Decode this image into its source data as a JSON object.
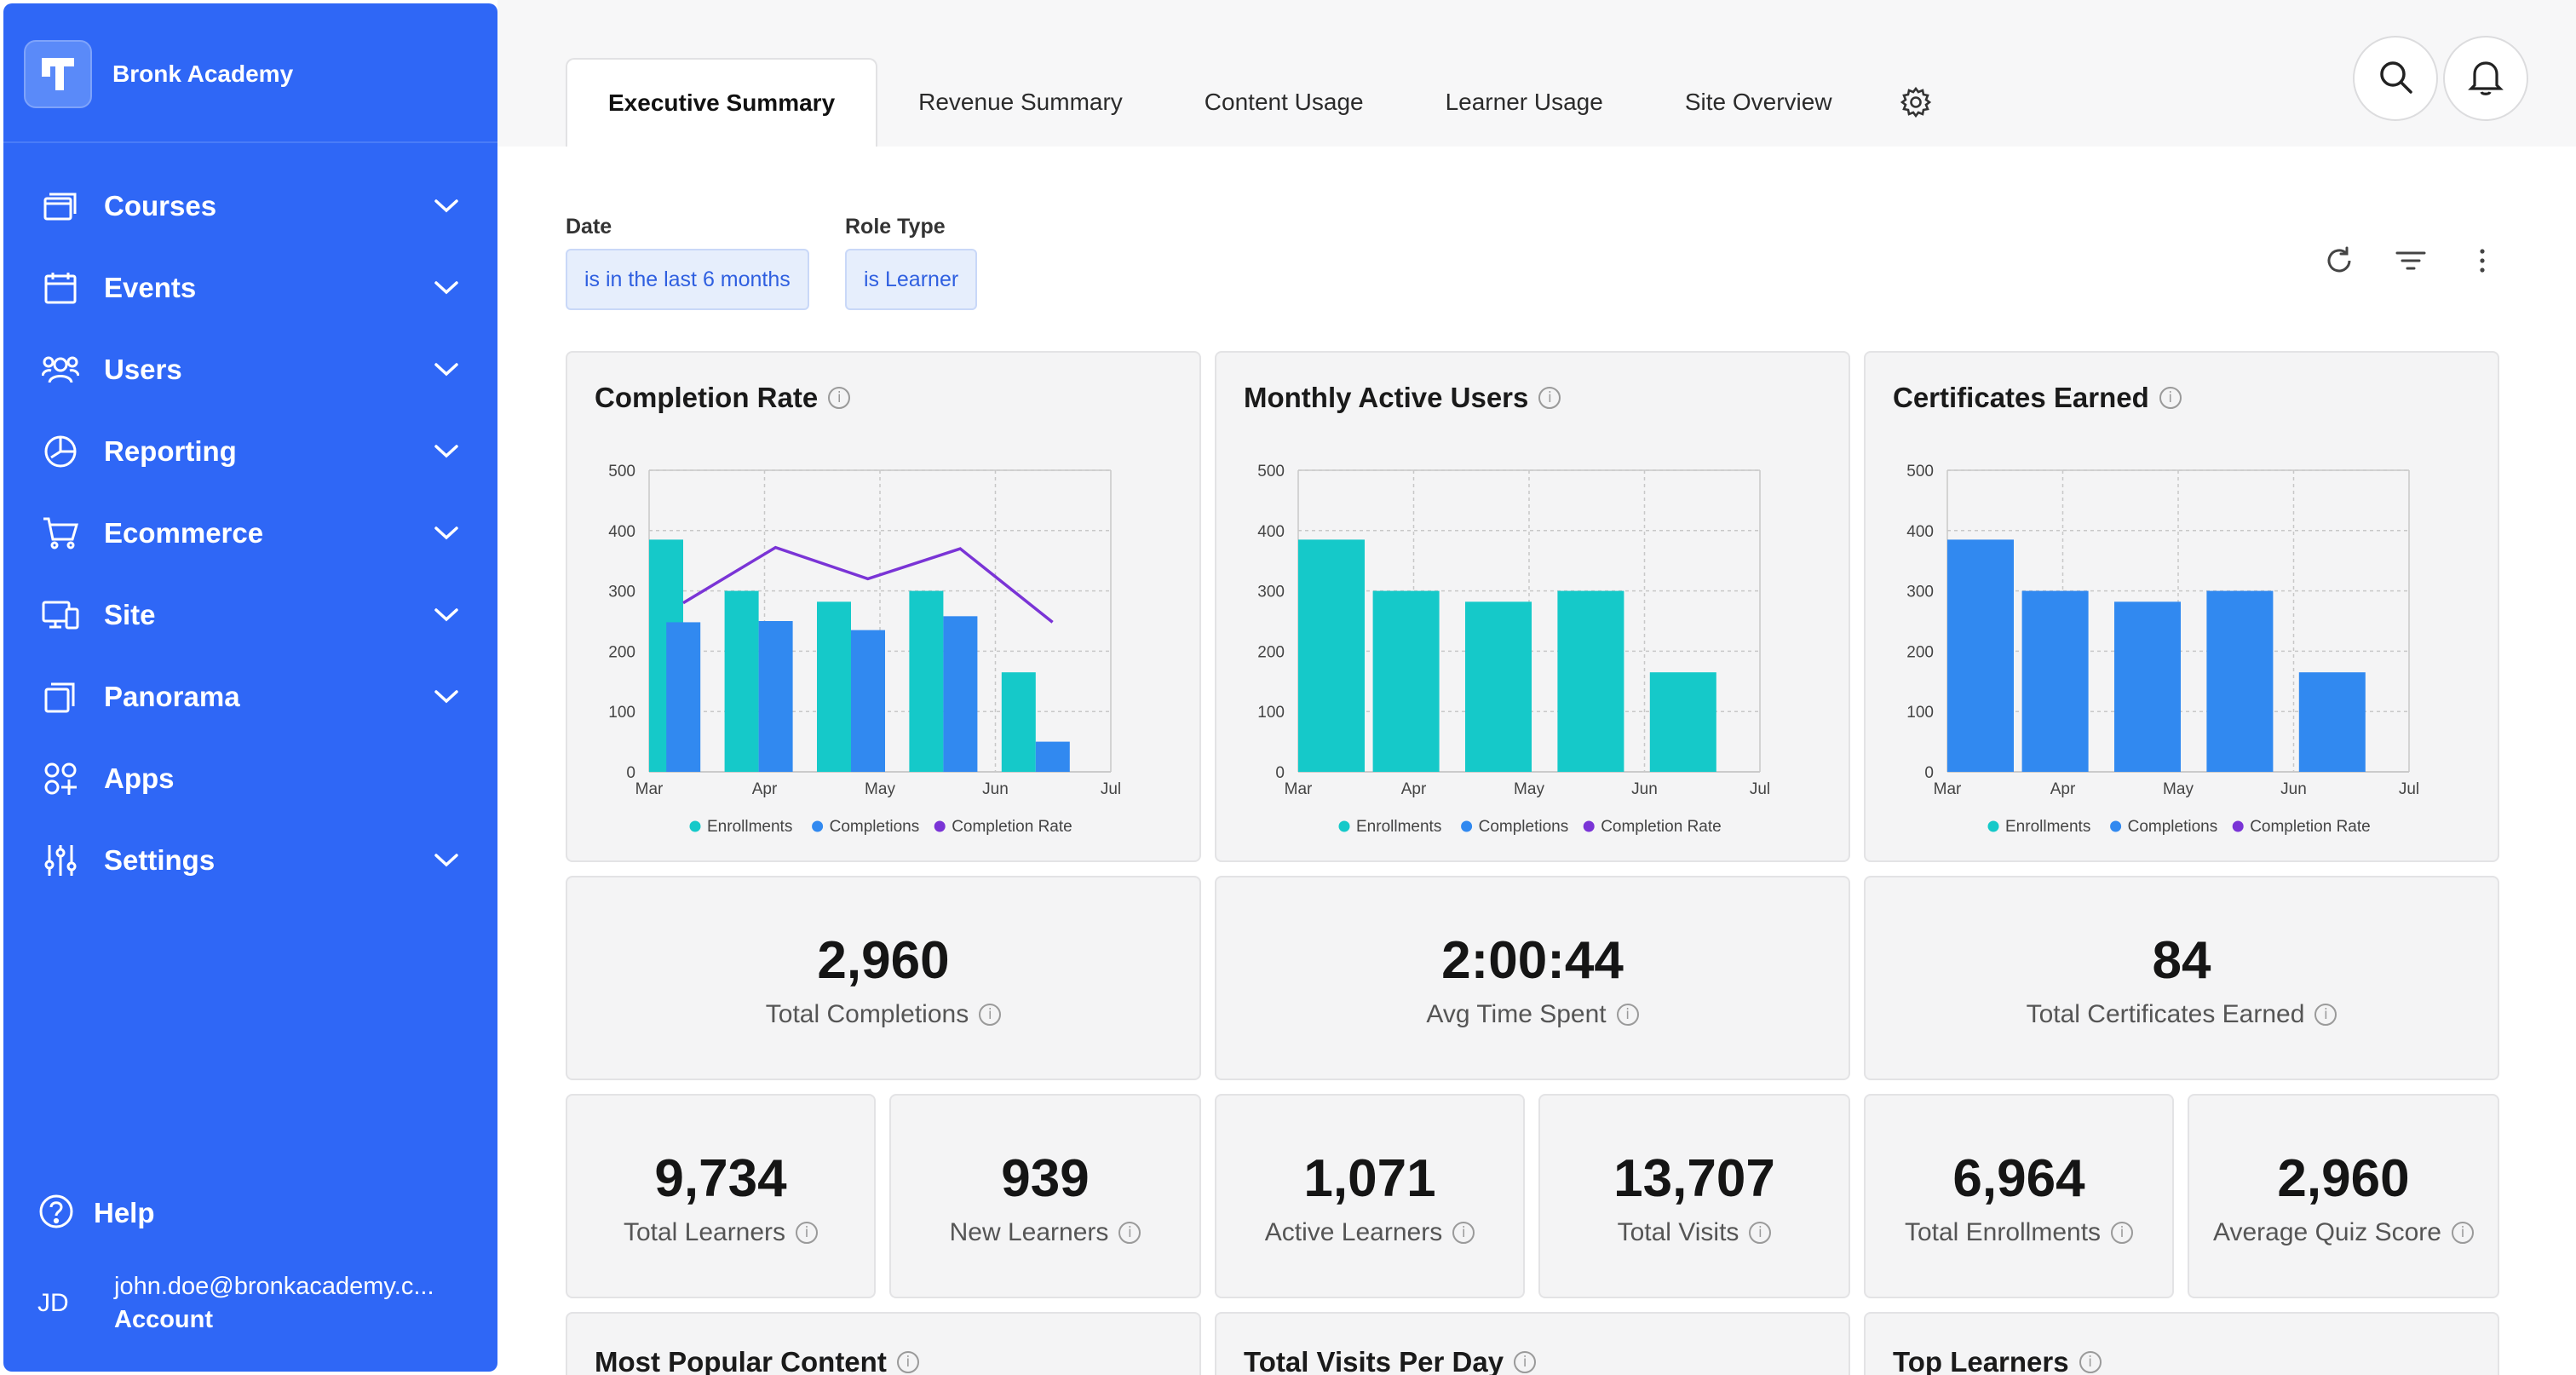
{
  "brand": {
    "name": "Bronk Academy",
    "logo_icon": "academy-logo-icon"
  },
  "nav": [
    {
      "key": "courses",
      "label": "Courses",
      "icon": "courses-icon",
      "has_children": true
    },
    {
      "key": "events",
      "label": "Events",
      "icon": "calendar-icon",
      "has_children": true
    },
    {
      "key": "users",
      "label": "Users",
      "icon": "users-icon",
      "has_children": true
    },
    {
      "key": "reporting",
      "label": "Reporting",
      "icon": "pie-chart-icon",
      "has_children": true
    },
    {
      "key": "ecommerce",
      "label": "Ecommerce",
      "icon": "cart-icon",
      "has_children": true
    },
    {
      "key": "site",
      "label": "Site",
      "icon": "devices-icon",
      "has_children": true
    },
    {
      "key": "panorama",
      "label": "Panorama",
      "icon": "stack-icon",
      "has_children": true
    },
    {
      "key": "apps",
      "label": "Apps",
      "icon": "apps-icon",
      "has_children": false
    },
    {
      "key": "settings",
      "label": "Settings",
      "icon": "sliders-icon",
      "has_children": true
    }
  ],
  "help": {
    "label": "Help"
  },
  "account": {
    "initials": "JD",
    "email": "john.doe@bronkacademy.c...",
    "label": "Account"
  },
  "tabs": [
    {
      "label": "Executive Summary",
      "active": true
    },
    {
      "label": "Revenue Summary",
      "active": false
    },
    {
      "label": "Content Usage",
      "active": false
    },
    {
      "label": "Learner Usage",
      "active": false
    },
    {
      "label": "Site Overview",
      "active": false
    }
  ],
  "filters": {
    "date": {
      "label": "Date",
      "value": "is in the last 6 months"
    },
    "role": {
      "label": "Role Type",
      "value": "is Learner"
    }
  },
  "colors": {
    "sidebar": "#2f67f6",
    "teal": "#15c9c9",
    "blue": "#3189f0",
    "purple": "#7a34d6"
  },
  "charts": {
    "completion_rate": {
      "title": "Completion Rate",
      "chart_data": {
        "type": "bar",
        "x": [
          "Mar",
          "Apr",
          "May",
          "Jun",
          "Jul"
        ],
        "yticks": [
          0,
          100,
          200,
          300,
          400,
          500
        ],
        "ylim": [
          0,
          500
        ],
        "legend": [
          "Enrollments",
          "Completions",
          "Completion Rate"
        ],
        "series": [
          {
            "name": "Enrollments",
            "type": "bar",
            "values": [
              385,
              300,
              282,
              300,
              165
            ]
          },
          {
            "name": "Completions",
            "type": "bar",
            "values": [
              248,
              250,
              235,
              258,
              50
            ]
          },
          {
            "name": "Completion Rate",
            "type": "line",
            "values": [
              280,
              372,
              320,
              370,
              248
            ]
          }
        ]
      }
    },
    "monthly_active_users": {
      "title": "Monthly Active Users",
      "chart_data": {
        "type": "bar",
        "x": [
          "Mar",
          "Apr",
          "May",
          "Jun",
          "Jul"
        ],
        "yticks": [
          0,
          100,
          200,
          300,
          400,
          500
        ],
        "ylim": [
          0,
          500
        ],
        "legend": [
          "Enrollments",
          "Completions",
          "Completion Rate"
        ],
        "series": [
          {
            "name": "Enrollments",
            "type": "bar",
            "values": [
              385,
              300,
              282,
              300,
              165
            ]
          }
        ]
      }
    },
    "certificates_earned": {
      "title": "Certificates Earned",
      "chart_data": {
        "type": "bar",
        "x": [
          "Mar",
          "Apr",
          "May",
          "Jun",
          "Jul"
        ],
        "yticks": [
          0,
          100,
          200,
          300,
          400,
          500
        ],
        "ylim": [
          0,
          500
        ],
        "legend": [
          "Enrollments",
          "Completions",
          "Completion Rate"
        ],
        "series": [
          {
            "name": "Completions",
            "type": "bar",
            "values": [
              385,
              300,
              282,
              300,
              165
            ]
          }
        ]
      }
    }
  },
  "metrics_large": [
    {
      "value": "2,960",
      "label": "Total Completions"
    },
    {
      "value": "2:00:44",
      "label": "Avg Time Spent"
    },
    {
      "value": "84",
      "label": "Total Certificates Earned"
    }
  ],
  "metrics_small": [
    {
      "value": "9,734",
      "label": "Total Learners"
    },
    {
      "value": "939",
      "label": "New Learners"
    },
    {
      "value": "1,071",
      "label": "Active Learners"
    },
    {
      "value": "13,707",
      "label": "Total Visits"
    },
    {
      "value": "6,964",
      "label": "Total Enrollments"
    },
    {
      "value": "2,960",
      "label": "Average Quiz Score"
    }
  ],
  "bottom_cards": [
    {
      "title": "Most Popular Content"
    },
    {
      "title": "Total Visits Per Day"
    },
    {
      "title": "Top Learners"
    }
  ]
}
